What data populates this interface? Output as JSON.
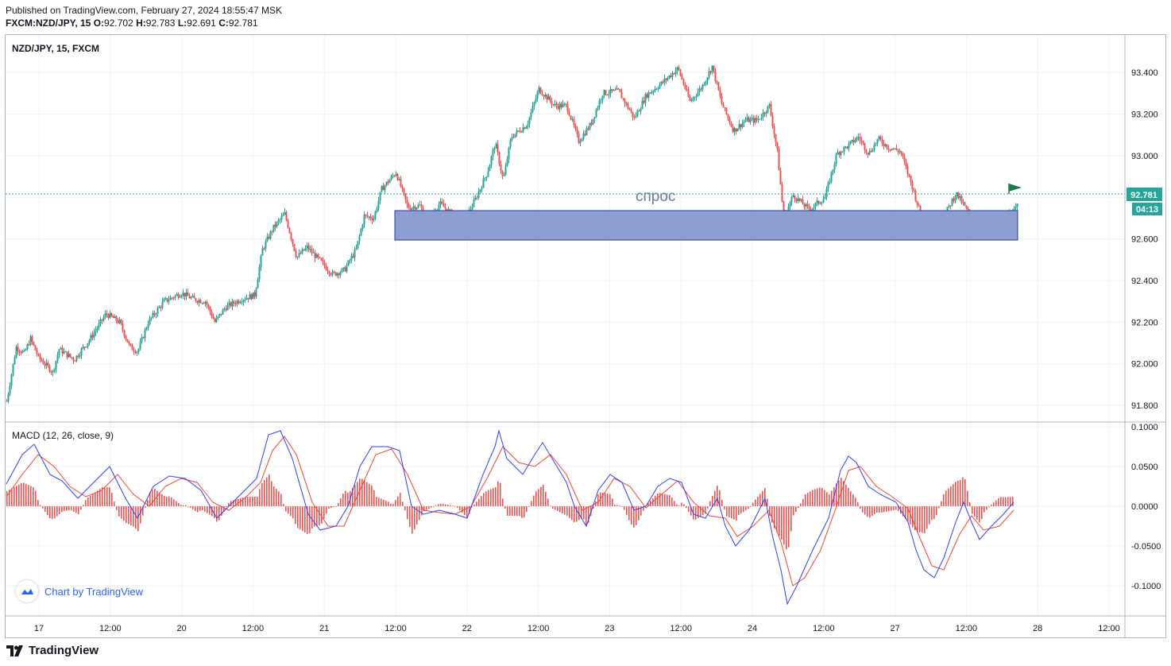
{
  "header": {
    "published": "Published on TradingView.com, February 27, 2024 18:55:47 MSK",
    "symbol": "FXCM:NZD/JPY, 15",
    "ohlc": {
      "o_label": "O:",
      "o": "92.702",
      "h_label": "H:",
      "h": "92.783",
      "l_label": "L:",
      "l": "92.691",
      "c_label": "C:",
      "c": "92.781"
    }
  },
  "pane_label": "NZD/JPY, 15, FXCM",
  "macd_label": "MACD (12, 26, close, 9)",
  "zone_label": "спрос",
  "last_price": "92.781",
  "countdown": "04:13",
  "chart_by": "Chart by TradingView",
  "footer_brand": "TradingView",
  "colors": {
    "up": "#26a69a",
    "down": "#ef5350",
    "zone": "#8c9fd0",
    "macd": "#2940ff",
    "signal": "#f44336",
    "hist": "#ef5350",
    "flag": "#1e7a4a"
  },
  "icons": {
    "flag": "flag-icon",
    "logo": "tradingview-logo-icon",
    "cloud": "cloud-icon"
  },
  "chart_data": [
    {
      "type": "candlestick",
      "title": "NZD/JPY, 15, FXCM",
      "x_ticks": [
        "17",
        "12:00",
        "20",
        "12:00",
        "21",
        "12:00",
        "22",
        "12:00",
        "23",
        "12:00",
        "24",
        "12:00",
        "27",
        "12:00",
        "28",
        "12:00"
      ],
      "y_ticks": [
        "93.400",
        "93.200",
        "93.000",
        "92.800",
        "92.600",
        "92.400",
        "92.200",
        "92.000",
        "91.800"
      ],
      "ylim": [
        91.72,
        93.58
      ],
      "close_path": [
        [
          0,
          91.82
        ],
        [
          12,
          92.08
        ],
        [
          22,
          92.05
        ],
        [
          30,
          92.12
        ],
        [
          40,
          92.03
        ],
        [
          58,
          91.96
        ],
        [
          66,
          92.07
        ],
        [
          85,
          92.02
        ],
        [
          105,
          92.12
        ],
        [
          125,
          92.24
        ],
        [
          142,
          92.2
        ],
        [
          155,
          92.08
        ],
        [
          165,
          92.06
        ],
        [
          178,
          92.2
        ],
        [
          198,
          92.3
        ],
        [
          220,
          92.34
        ],
        [
          235,
          92.31
        ],
        [
          250,
          92.3
        ],
        [
          262,
          92.2
        ],
        [
          275,
          92.27
        ],
        [
          295,
          92.31
        ],
        [
          312,
          92.33
        ],
        [
          322,
          92.55
        ],
        [
          335,
          92.65
        ],
        [
          350,
          92.72
        ],
        [
          365,
          92.51
        ],
        [
          378,
          92.56
        ],
        [
          393,
          92.5
        ],
        [
          410,
          92.43
        ],
        [
          425,
          92.45
        ],
        [
          440,
          92.55
        ],
        [
          450,
          92.71
        ],
        [
          462,
          92.7
        ],
        [
          472,
          92.84
        ],
        [
          490,
          92.92
        ],
        [
          505,
          92.75
        ],
        [
          520,
          92.76
        ],
        [
          530,
          92.69
        ],
        [
          545,
          92.77
        ],
        [
          560,
          92.72
        ],
        [
          575,
          92.68
        ],
        [
          590,
          92.79
        ],
        [
          605,
          92.92
        ],
        [
          615,
          93.06
        ],
        [
          625,
          92.88
        ],
        [
          635,
          93.09
        ],
        [
          655,
          93.15
        ],
        [
          670,
          93.32
        ],
        [
          690,
          93.24
        ],
        [
          705,
          93.24
        ],
        [
          720,
          93.07
        ],
        [
          735,
          93.15
        ],
        [
          750,
          93.3
        ],
        [
          770,
          93.31
        ],
        [
          790,
          93.18
        ],
        [
          805,
          93.29
        ],
        [
          825,
          93.35
        ],
        [
          845,
          93.42
        ],
        [
          860,
          93.26
        ],
        [
          875,
          93.33
        ],
        [
          888,
          93.43
        ],
        [
          900,
          93.25
        ],
        [
          915,
          93.12
        ],
        [
          930,
          93.17
        ],
        [
          945,
          93.17
        ],
        [
          960,
          93.24
        ],
        [
          970,
          93.02
        ],
        [
          978,
          92.7
        ],
        [
          990,
          92.81
        ],
        [
          1010,
          92.74
        ],
        [
          1030,
          92.8
        ],
        [
          1045,
          93.01
        ],
        [
          1060,
          93.05
        ],
        [
          1072,
          93.09
        ],
        [
          1085,
          93.01
        ],
        [
          1097,
          93.08
        ],
        [
          1110,
          93.04
        ],
        [
          1125,
          93.02
        ],
        [
          1140,
          92.85
        ],
        [
          1150,
          92.72
        ],
        [
          1165,
          92.63
        ],
        [
          1180,
          92.71
        ],
        [
          1195,
          92.82
        ],
        [
          1210,
          92.73
        ],
        [
          1220,
          92.62
        ],
        [
          1235,
          92.64
        ],
        [
          1248,
          92.62
        ],
        [
          1260,
          92.71
        ],
        [
          1272,
          92.78
        ]
      ]
    },
    {
      "type": "line",
      "title": "MACD (12, 26, close, 9)",
      "series": [
        {
          "name": "MACD"
        },
        {
          "name": "Signal"
        },
        {
          "name": "Histogram"
        }
      ],
      "y_ticks": [
        "0.1000",
        "0.0500",
        "0.0000",
        "-0.0500",
        "-0.1000"
      ],
      "ylim": [
        -0.138,
        0.105
      ],
      "macd_path": [
        [
          0,
          0.028
        ],
        [
          20,
          0.065
        ],
        [
          35,
          0.078
        ],
        [
          55,
          0.04
        ],
        [
          70,
          0.032
        ],
        [
          90,
          0.01
        ],
        [
          110,
          0.03
        ],
        [
          130,
          0.05
        ],
        [
          150,
          0.01
        ],
        [
          165,
          -0.015
        ],
        [
          185,
          0.025
        ],
        [
          205,
          0.038
        ],
        [
          225,
          0.035
        ],
        [
          245,
          0.02
        ],
        [
          265,
          -0.015
        ],
        [
          285,
          0.005
        ],
        [
          300,
          0.02
        ],
        [
          315,
          0.035
        ],
        [
          330,
          0.09
        ],
        [
          345,
          0.095
        ],
        [
          360,
          0.06
        ],
        [
          380,
          -0.01
        ],
        [
          395,
          -0.03
        ],
        [
          415,
          -0.025
        ],
        [
          430,
          0.0
        ],
        [
          445,
          0.05
        ],
        [
          460,
          0.075
        ],
        [
          480,
          0.075
        ],
        [
          495,
          0.07
        ],
        [
          510,
          0.0
        ],
        [
          525,
          -0.01
        ],
        [
          545,
          -0.005
        ],
        [
          565,
          -0.01
        ],
        [
          580,
          -0.015
        ],
        [
          600,
          0.04
        ],
        [
          615,
          0.075
        ],
        [
          620,
          0.095
        ],
        [
          630,
          0.06
        ],
        [
          650,
          0.04
        ],
        [
          665,
          0.065
        ],
        [
          675,
          0.08
        ],
        [
          690,
          0.055
        ],
        [
          705,
          0.03
        ],
        [
          715,
          0.0
        ],
        [
          730,
          -0.025
        ],
        [
          745,
          0.02
        ],
        [
          760,
          0.04
        ],
        [
          775,
          0.03
        ],
        [
          790,
          -0.005
        ],
        [
          805,
          0.0
        ],
        [
          820,
          0.025
        ],
        [
          835,
          0.035
        ],
        [
          850,
          0.03
        ],
        [
          865,
          -0.01
        ],
        [
          880,
          -0.015
        ],
        [
          895,
          0.01
        ],
        [
          905,
          -0.025
        ],
        [
          918,
          -0.05
        ],
        [
          935,
          -0.03
        ],
        [
          955,
          0.01
        ],
        [
          965,
          -0.04
        ],
        [
          975,
          -0.08
        ],
        [
          983,
          -0.123
        ],
        [
          995,
          -0.1
        ],
        [
          1015,
          -0.055
        ],
        [
          1035,
          -0.015
        ],
        [
          1050,
          0.045
        ],
        [
          1060,
          0.063
        ],
        [
          1070,
          0.055
        ],
        [
          1085,
          0.025
        ],
        [
          1100,
          0.015
        ],
        [
          1120,
          0.005
        ],
        [
          1135,
          -0.02
        ],
        [
          1145,
          -0.055
        ],
        [
          1155,
          -0.08
        ],
        [
          1168,
          -0.09
        ],
        [
          1180,
          -0.065
        ],
        [
          1195,
          -0.02
        ],
        [
          1205,
          0.005
        ],
        [
          1215,
          -0.02
        ],
        [
          1225,
          -0.042
        ],
        [
          1240,
          -0.025
        ],
        [
          1255,
          -0.01
        ],
        [
          1268,
          0.005
        ]
      ],
      "signal_path": [
        [
          0,
          0.012
        ],
        [
          20,
          0.04
        ],
        [
          40,
          0.065
        ],
        [
          60,
          0.05
        ],
        [
          80,
          0.025
        ],
        [
          100,
          0.012
        ],
        [
          120,
          0.02
        ],
        [
          140,
          0.04
        ],
        [
          160,
          0.015
        ],
        [
          180,
          0.0
        ],
        [
          200,
          0.025
        ],
        [
          220,
          0.035
        ],
        [
          240,
          0.03
        ],
        [
          260,
          0.005
        ],
        [
          280,
          -0.005
        ],
        [
          300,
          0.01
        ],
        [
          320,
          0.03
        ],
        [
          335,
          0.07
        ],
        [
          350,
          0.088
        ],
        [
          365,
          0.065
        ],
        [
          385,
          0.005
        ],
        [
          405,
          -0.025
        ],
        [
          425,
          -0.025
        ],
        [
          445,
          0.02
        ],
        [
          465,
          0.065
        ],
        [
          485,
          0.072
        ],
        [
          505,
          0.04
        ],
        [
          525,
          -0.005
        ],
        [
          545,
          -0.008
        ],
        [
          565,
          -0.01
        ],
        [
          585,
          0.0
        ],
        [
          605,
          0.035
        ],
        [
          625,
          0.075
        ],
        [
          645,
          0.055
        ],
        [
          665,
          0.05
        ],
        [
          685,
          0.065
        ],
        [
          705,
          0.04
        ],
        [
          725,
          -0.005
        ],
        [
          745,
          0.005
        ],
        [
          765,
          0.035
        ],
        [
          785,
          0.025
        ],
        [
          805,
          -0.002
        ],
        [
          825,
          0.015
        ],
        [
          845,
          0.032
        ],
        [
          865,
          0.005
        ],
        [
          885,
          -0.012
        ],
        [
          905,
          -0.015
        ],
        [
          920,
          -0.038
        ],
        [
          940,
          -0.025
        ],
        [
          960,
          -0.005
        ],
        [
          975,
          -0.045
        ],
        [
          990,
          -0.1
        ],
        [
          1005,
          -0.09
        ],
        [
          1025,
          -0.055
        ],
        [
          1045,
          0.0
        ],
        [
          1060,
          0.045
        ],
        [
          1075,
          0.05
        ],
        [
          1095,
          0.025
        ],
        [
          1115,
          0.012
        ],
        [
          1135,
          -0.003
        ],
        [
          1150,
          -0.04
        ],
        [
          1165,
          -0.075
        ],
        [
          1180,
          -0.08
        ],
        [
          1200,
          -0.035
        ],
        [
          1215,
          -0.012
        ],
        [
          1230,
          -0.03
        ],
        [
          1250,
          -0.025
        ],
        [
          1268,
          -0.005
        ]
      ]
    }
  ]
}
